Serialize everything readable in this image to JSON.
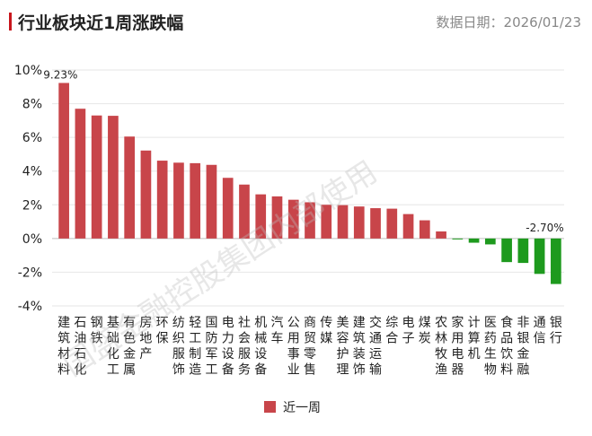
{
  "header": {
    "title": "行业板块近1周涨跌幅",
    "date_label": "数据日期：2026/01/23"
  },
  "watermark": "国盛金融控股集团内部使用",
  "colors": {
    "positive": "#c8454a",
    "negative": "#1e9a1e",
    "accent": "#c8161d"
  },
  "chart_data": {
    "type": "bar",
    "title": "行业板块近1周涨跌幅",
    "xlabel": "",
    "ylabel": "",
    "ylim": [
      -4,
      10
    ],
    "yticks": [
      -4,
      -2,
      0,
      2,
      4,
      6,
      8,
      10
    ],
    "ytick_labels": [
      "-4%",
      "-2%",
      "0%",
      "2%",
      "4%",
      "6%",
      "8%",
      "10%"
    ],
    "grid": true,
    "legend": "bottom",
    "categories": [
      "建筑材料",
      "石油石化",
      "钢铁",
      "基础化工",
      "有色金属",
      "房地产",
      "环保",
      "纺织服饰",
      "轻工制造",
      "国防军工",
      "电力设备",
      "社会服务",
      "机械设备",
      "汽车",
      "公用事业",
      "商贸零售",
      "传媒",
      "美容护理",
      "建筑装饰",
      "交通运输",
      "综合",
      "电子",
      "煤炭",
      "农林牧渔",
      "家用电器",
      "计算机",
      "医药生物",
      "食品饮料",
      "非银金融",
      "通信",
      "银行"
    ],
    "series": [
      {
        "name": "近一周",
        "values": [
          9.23,
          7.7,
          7.3,
          7.28,
          6.05,
          5.22,
          4.62,
          4.5,
          4.47,
          4.37,
          3.6,
          3.2,
          2.62,
          2.5,
          2.3,
          2.15,
          2.0,
          1.98,
          1.9,
          1.8,
          1.77,
          1.45,
          1.08,
          0.42,
          -0.05,
          -0.25,
          -0.35,
          -1.4,
          -1.45,
          -2.1,
          -2.7
        ]
      }
    ],
    "data_labels": [
      {
        "index": 0,
        "text": "9.23%"
      },
      {
        "index": 30,
        "text": "-2.70%"
      }
    ]
  }
}
